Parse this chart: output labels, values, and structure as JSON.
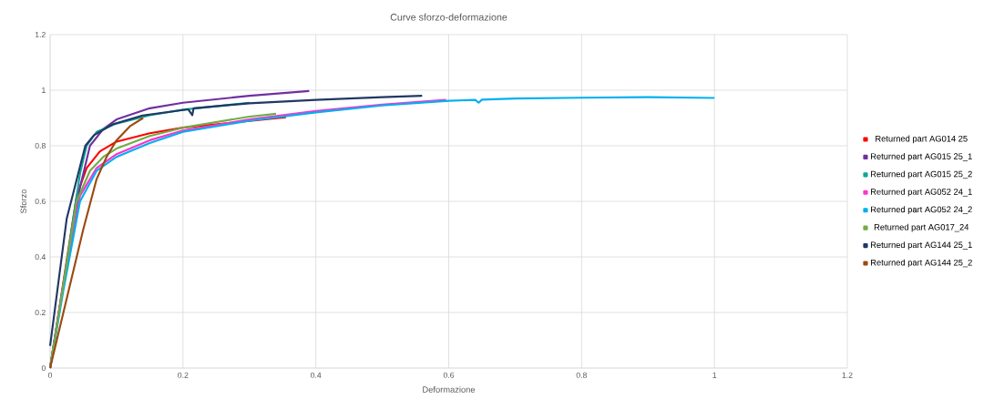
{
  "chart_data": {
    "type": "line",
    "title": "Curve sforzo-deformazione",
    "xlabel": "Deformazione",
    "ylabel": "Sforzo",
    "xlim": [
      0,
      1.2
    ],
    "ylim": [
      0,
      1.2
    ],
    "xticks": [
      0,
      0.2,
      0.4,
      0.6,
      0.8,
      1,
      1.2
    ],
    "yticks": [
      0,
      0.2,
      0.4,
      0.6,
      0.8,
      1,
      1.2
    ],
    "grid": true,
    "legend": "right",
    "marker": "none",
    "line_style": "solid",
    "series": [
      {
        "name": "Returned part AG014 25",
        "color": "#ff0000",
        "x": [
          0,
          0.04,
          0.055,
          0.075,
          0.1,
          0.15,
          0.2,
          0.355
        ],
        "values": [
          0,
          0.62,
          0.72,
          0.78,
          0.815,
          0.845,
          0.865,
          0.903
        ]
      },
      {
        "name": "Returned part AG015 25_1",
        "color": "#7030a0",
        "x": [
          0,
          0.02,
          0.045,
          0.06,
          0.08,
          0.1,
          0.15,
          0.2,
          0.3,
          0.39
        ],
        "values": [
          0,
          0.3,
          0.65,
          0.8,
          0.86,
          0.895,
          0.935,
          0.955,
          0.98,
          0.997
        ]
      },
      {
        "name": "Returned part AG015 25_2",
        "color": "#11a59a",
        "x": [
          0,
          0.02,
          0.045,
          0.055,
          0.07,
          0.1,
          0.15,
          0.2,
          0.3
        ],
        "values": [
          0,
          0.3,
          0.7,
          0.8,
          0.85,
          0.88,
          0.91,
          0.93,
          0.955
        ]
      },
      {
        "name": "Returned part AG052 24_1",
        "color": "#ff33cc",
        "x": [
          0,
          0.02,
          0.045,
          0.07,
          0.1,
          0.15,
          0.2,
          0.3,
          0.4,
          0.5,
          0.596
        ],
        "values": [
          0,
          0.3,
          0.62,
          0.72,
          0.77,
          0.82,
          0.855,
          0.895,
          0.925,
          0.948,
          0.965
        ]
      },
      {
        "name": "Returned part AG052 24_2",
        "color": "#00b0f0",
        "x": [
          0,
          0.02,
          0.045,
          0.07,
          0.1,
          0.15,
          0.2,
          0.3,
          0.4,
          0.5,
          0.6,
          0.64,
          0.645,
          0.65,
          0.7,
          0.8,
          0.9,
          1.0
        ],
        "values": [
          0,
          0.28,
          0.6,
          0.71,
          0.76,
          0.81,
          0.85,
          0.89,
          0.92,
          0.945,
          0.962,
          0.965,
          0.955,
          0.966,
          0.97,
          0.973,
          0.975,
          0.972
        ]
      },
      {
        "name": "Returned part AG017_24",
        "color": "#70ad47",
        "x": [
          0,
          0.02,
          0.04,
          0.06,
          0.08,
          0.1,
          0.15,
          0.2,
          0.3,
          0.34
        ],
        "values": [
          0,
          0.3,
          0.6,
          0.71,
          0.76,
          0.79,
          0.835,
          0.865,
          0.905,
          0.915
        ]
      },
      {
        "name": "Returned part AG144 25_1",
        "color": "#203864",
        "x": [
          0,
          0.025,
          0.039,
          0.053,
          0.066,
          0.094,
          0.139,
          0.208,
          0.214,
          0.216,
          0.3,
          0.4,
          0.5,
          0.56
        ],
        "values": [
          0.08,
          0.538,
          0.669,
          0.8,
          0.838,
          0.877,
          0.909,
          0.931,
          0.91,
          0.935,
          0.953,
          0.965,
          0.975,
          0.98
        ]
      },
      {
        "name": "Returned part AG144 25_2",
        "color": "#9c4a0e",
        "x": [
          0,
          0.03,
          0.05,
          0.07,
          0.085,
          0.1,
          0.12,
          0.14
        ],
        "values": [
          0,
          0.3,
          0.5,
          0.68,
          0.76,
          0.82,
          0.87,
          0.9
        ]
      }
    ]
  }
}
